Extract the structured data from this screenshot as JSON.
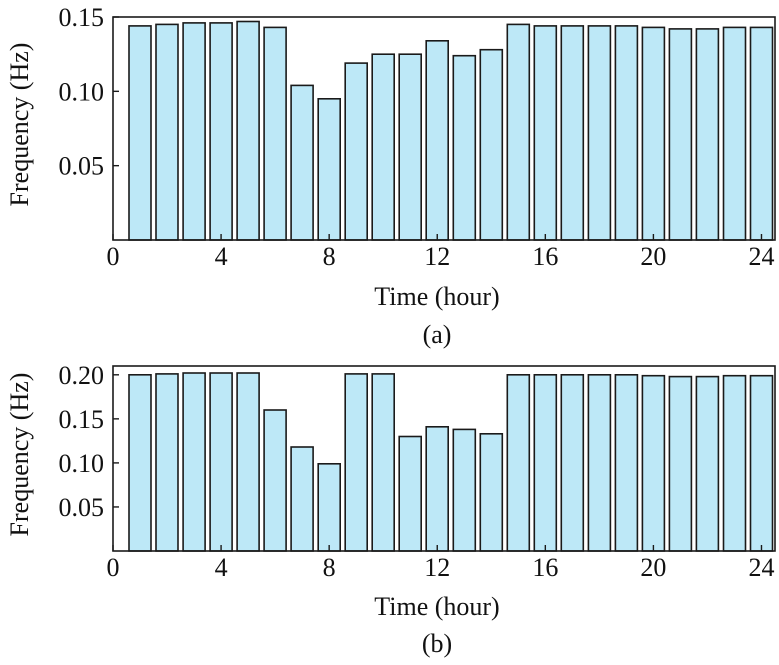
{
  "chart_data": [
    {
      "type": "bar",
      "xlabel": "Time (hour)",
      "ylabel": "Frequency (Hz)",
      "caption": "(a)",
      "xlim": [
        0,
        24.5
      ],
      "ylim": [
        0,
        0.15
      ],
      "xticks": [
        0,
        4,
        8,
        12,
        16,
        20,
        24
      ],
      "yticks": [
        0.05,
        0.1,
        0.15
      ],
      "ytick_labels": [
        "0.05",
        "0.10",
        "0.15"
      ],
      "bar_color": "#bde8f7",
      "x": [
        1,
        2,
        3,
        4,
        5,
        6,
        7,
        8,
        9,
        10,
        11,
        12,
        13,
        14,
        15,
        16,
        17,
        18,
        19,
        20,
        21,
        22,
        23,
        24
      ],
      "values": [
        0.144,
        0.145,
        0.146,
        0.146,
        0.147,
        0.143,
        0.104,
        0.095,
        0.119,
        0.125,
        0.125,
        0.134,
        0.124,
        0.128,
        0.145,
        0.144,
        0.144,
        0.144,
        0.144,
        0.143,
        0.142,
        0.142,
        0.143,
        0.143
      ]
    },
    {
      "type": "bar",
      "xlabel": "Time (hour)",
      "ylabel": "Frequency (Hz)",
      "caption": "(b)",
      "xlim": [
        0,
        24.5
      ],
      "ylim": [
        0,
        0.21
      ],
      "xticks": [
        0,
        4,
        8,
        12,
        16,
        20,
        24
      ],
      "yticks": [
        0.05,
        0.1,
        0.15,
        0.2
      ],
      "ytick_labels": [
        "0.05",
        "0.10",
        "0.15",
        "0.20"
      ],
      "bar_color": "#bde8f7",
      "x": [
        1,
        2,
        3,
        4,
        5,
        6,
        7,
        8,
        9,
        10,
        11,
        12,
        13,
        14,
        15,
        16,
        17,
        18,
        19,
        20,
        21,
        22,
        23,
        24
      ],
      "values": [
        0.2,
        0.201,
        0.202,
        0.202,
        0.202,
        0.16,
        0.118,
        0.099,
        0.201,
        0.201,
        0.13,
        0.141,
        0.138,
        0.133,
        0.2,
        0.2,
        0.2,
        0.2,
        0.2,
        0.199,
        0.198,
        0.198,
        0.199,
        0.199
      ]
    }
  ]
}
